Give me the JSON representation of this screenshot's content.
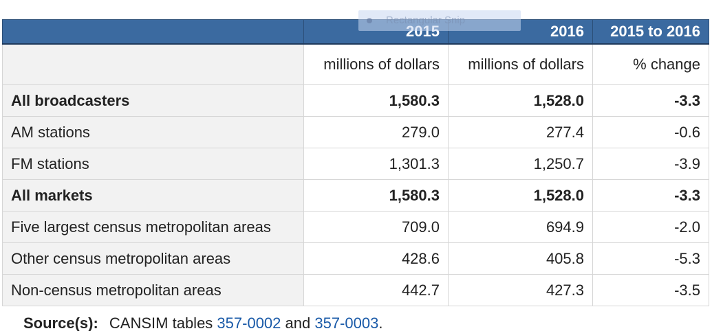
{
  "table": {
    "header": [
      "",
      "2015",
      "2016",
      "2015 to 2016"
    ],
    "units": [
      "",
      "millions of dollars",
      "millions of dollars",
      "% change"
    ],
    "rows": [
      {
        "label": "All broadcasters",
        "v2015": "1,580.3",
        "v2016": "1,528.0",
        "change": "-3.3",
        "bold": true
      },
      {
        "label": "AM stations",
        "v2015": "279.0",
        "v2016": "277.4",
        "change": "-0.6",
        "bold": false
      },
      {
        "label": "FM stations",
        "v2015": "1,301.3",
        "v2016": "1,250.7",
        "change": "-3.9",
        "bold": false
      },
      {
        "label": "All markets",
        "v2015": "1,580.3",
        "v2016": "1,528.0",
        "change": "-3.3",
        "bold": true
      },
      {
        "label": "Five largest census metropolitan areas",
        "v2015": "709.0",
        "v2016": "694.9",
        "change": "-2.0",
        "bold": false
      },
      {
        "label": "Other census metropolitan areas",
        "v2015": "428.6",
        "v2016": "405.8",
        "change": "-5.3",
        "bold": false
      },
      {
        "label": "Non-census metropolitan areas",
        "v2015": "442.7",
        "v2016": "427.3",
        "change": "-3.5",
        "bold": false
      }
    ]
  },
  "overlay": {
    "text": "Rectangular Snip"
  },
  "source": {
    "label": "Source(s):",
    "prefix": "CANSIM tables ",
    "link1": "357-0002",
    "middle": " and ",
    "link2": "357-0003",
    "suffix": "."
  },
  "colors": {
    "header_bg": "#3b6aa0",
    "stub_bg": "#f2f2f2",
    "link": "#1a5aa8"
  }
}
